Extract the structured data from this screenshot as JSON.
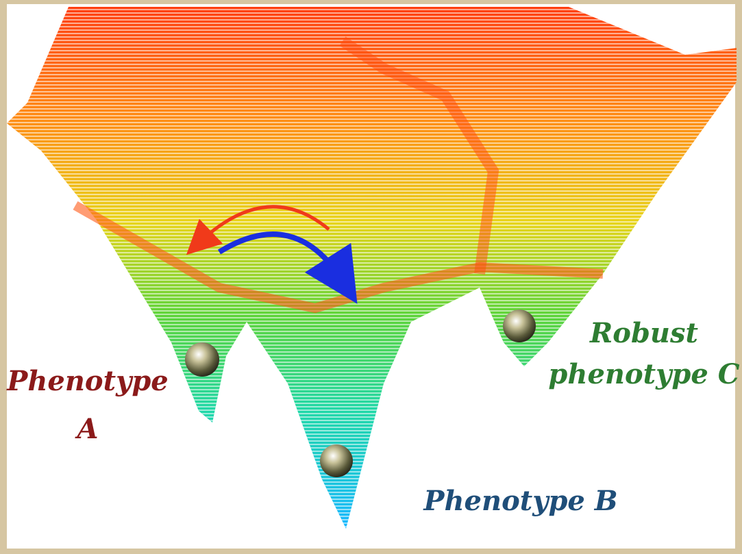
{
  "labels": [
    {
      "lines": [
        "Phenotype",
        "A"
      ]
    },
    {
      "lines": [
        "Phenotype B"
      ]
    },
    {
      "lines": [
        "Robust",
        "phenotype C"
      ]
    }
  ]
}
